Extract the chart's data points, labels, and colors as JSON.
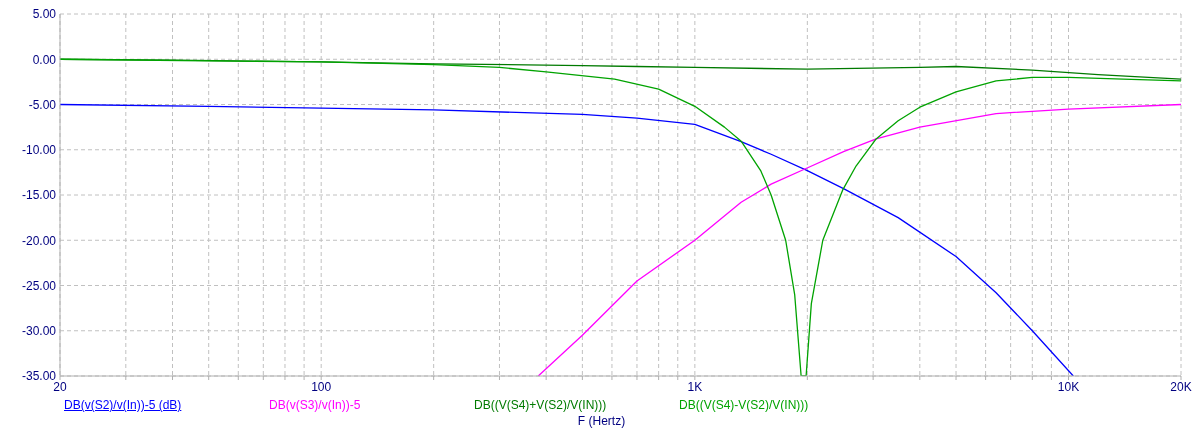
{
  "chart_data": {
    "type": "line",
    "xlabel": "F (Hertz)",
    "log": "x",
    "grid": true,
    "legend": "bottom",
    "marker": "none",
    "line_style": "solid",
    "xlim": [
      20,
      20000
    ],
    "xticks": [
      20,
      {
        "value": 30,
        "label": null
      },
      {
        "value": 40,
        "label": null
      },
      {
        "value": 50,
        "label": null
      },
      {
        "value": 60,
        "label": null
      },
      {
        "value": 70,
        "label": null
      },
      {
        "value": 80,
        "label": null
      },
      {
        "value": 90,
        "label": null
      },
      100,
      {
        "value": 200,
        "label": null
      },
      {
        "value": 300,
        "label": null
      },
      {
        "value": 400,
        "label": null
      },
      {
        "value": 500,
        "label": null
      },
      {
        "value": 600,
        "label": null
      },
      {
        "value": 700,
        "label": null
      },
      {
        "value": 800,
        "label": null
      },
      {
        "value": 900,
        "label": null
      },
      {
        "value": 1000,
        "label": "1K"
      },
      {
        "value": 2000,
        "label": null
      },
      {
        "value": 3000,
        "label": null
      },
      {
        "value": 4000,
        "label": null
      },
      {
        "value": 5000,
        "label": null
      },
      {
        "value": 6000,
        "label": null
      },
      {
        "value": 7000,
        "label": null
      },
      {
        "value": 8000,
        "label": null
      },
      {
        "value": 9000,
        "label": null
      },
      {
        "value": 10000,
        "label": "10K"
      },
      {
        "value": 20000,
        "label": "20K"
      }
    ],
    "ylim": [
      -35,
      5
    ],
    "yticks": [
      {
        "value": 5,
        "label": "5.00"
      },
      {
        "value": 0,
        "label": "0.00"
      },
      {
        "value": -5,
        "label": "-5.00"
      },
      {
        "value": -10,
        "label": "-10.00"
      },
      {
        "value": -15,
        "label": "-15.00"
      },
      {
        "value": -20,
        "label": "-20.00"
      },
      {
        "value": -25,
        "label": "-25.00"
      },
      {
        "value": -30,
        "label": "-30.00"
      },
      {
        "value": -35,
        "label": "-35.00"
      }
    ],
    "series": [
      {
        "name": "DB(v(S2)/v(In))-5 (dB)",
        "color": "#0000ff",
        "x": [
          20,
          50,
          100,
          200,
          500,
          700,
          1000,
          1330,
          1600,
          2000,
          2500,
          3500,
          5000,
          6400,
          8000,
          10300
        ],
        "values": [
          -5.0,
          -5.2,
          -5.4,
          -5.6,
          -6.1,
          -6.5,
          -7.2,
          -9.1,
          -10.5,
          -12.3,
          -14.3,
          -17.5,
          -21.8,
          -25.8,
          -30,
          -35
        ]
      },
      {
        "name": "DB(v(S3)/v(In))-5",
        "color": "#ff00ff",
        "x": [
          381,
          500,
          700,
          1000,
          1330,
          1600,
          1977,
          2500,
          3056,
          4000,
          6400,
          10000,
          20000
        ],
        "values": [
          -35,
          -30.5,
          -24.5,
          -20,
          -15.8,
          -13.8,
          -12.1,
          -10.2,
          -8.8,
          -7.5,
          -6.0,
          -5.5,
          -5.0
        ]
      },
      {
        "name": "DB((V(S4)+V(S2)/V(IN)))",
        "color": "#007a00",
        "x": [
          20,
          40,
          100,
          200,
          500,
          700,
          1000,
          2000,
          4000,
          5000,
          8000,
          12000,
          20000
        ],
        "values": [
          0,
          -0.1,
          -0.3,
          -0.5,
          -0.7,
          -0.8,
          -0.9,
          -1.1,
          -0.9,
          -0.8,
          -1.2,
          -1.7,
          -2.2
        ]
      },
      {
        "name": "DB((V(S4)-V(S2)/V(IN)))",
        "color": "#00a300",
        "x": [
          20,
          100,
          200,
          300,
          400,
          610,
          800,
          1000,
          1200,
          1333,
          1500,
          1600,
          1750,
          1850,
          1925,
          1985,
          2050,
          2200,
          2490,
          2700,
          3056,
          3500,
          4000,
          5000,
          6400,
          8000,
          10000,
          14000,
          20000
        ],
        "values": [
          0,
          -0.3,
          -0.6,
          -0.9,
          -1.4,
          -2.2,
          -3.3,
          -5.2,
          -7.5,
          -9.1,
          -12.3,
          -15,
          -20,
          -26,
          -35,
          -35,
          -27,
          -20,
          -14.4,
          -11.8,
          -8.8,
          -6.8,
          -5.3,
          -3.6,
          -2.4,
          -2.0,
          -2.0,
          -2.2,
          -2.4
        ]
      }
    ]
  }
}
